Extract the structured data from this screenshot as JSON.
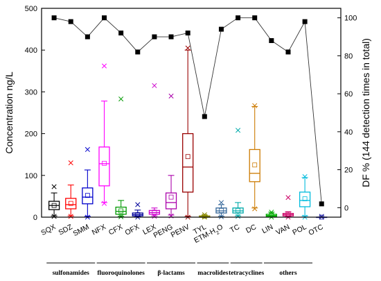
{
  "chart_data": {
    "type": "box",
    "ylabel_left": "Concentration ng/L",
    "ylabel_right": "DF % (144 detection times in total)",
    "ylim_left": [
      0,
      500
    ],
    "ylim_right": [
      -5,
      105
    ],
    "yticks_left": [
      0,
      100,
      200,
      300,
      400,
      500
    ],
    "yticks_right": [
      0,
      20,
      40,
      60,
      80,
      100
    ],
    "grid": false,
    "categories": [
      {
        "label": "SQX",
        "sub": "",
        "color": "#000000",
        "q1": 18,
        "median": 28,
        "q3": 38,
        "whisker_low": 3,
        "whisker_high": 58,
        "mean": 28,
        "min": 2,
        "max": 73
      },
      {
        "label": "SDZ",
        "sub": "",
        "color": "#ff0000",
        "q1": 20,
        "median": 30,
        "q3": 45,
        "whisker_low": 3,
        "whisker_high": 77,
        "mean": 33,
        "min": 2,
        "max": 130
      },
      {
        "label": "SMM",
        "sub": "",
        "color": "#0000cc",
        "q1": 32,
        "median": 48,
        "q3": 70,
        "whisker_low": 2,
        "whisker_high": 113,
        "mean": 52,
        "min": 0,
        "max": 162
      },
      {
        "label": "NFX",
        "sub": "",
        "color": "#ff00ff",
        "q1": 75,
        "median": 128,
        "q3": 168,
        "whisker_low": 35,
        "whisker_high": 278,
        "mean": 129,
        "min": 33,
        "max": 362
      },
      {
        "label": "CFX",
        "sub": "",
        "color": "#009900",
        "q1": 7,
        "median": 14,
        "q3": 24,
        "whisker_low": 2,
        "whisker_high": 40,
        "mean": 15,
        "min": 1,
        "max": 283
      },
      {
        "label": "OFX",
        "sub": "",
        "color": "#000099",
        "q1": 3,
        "median": 6,
        "q3": 10,
        "whisker_low": 1,
        "whisker_high": 17,
        "mean": 6,
        "min": 0,
        "max": 30
      },
      {
        "label": "LEX",
        "sub": "",
        "color": "#cc00cc",
        "q1": 7,
        "median": 11,
        "q3": 16,
        "whisker_low": 3,
        "whisker_high": 22,
        "mean": 12,
        "min": 2,
        "max": 315
      },
      {
        "label": "PENG",
        "sub": "",
        "color": "#aa00aa",
        "q1": 20,
        "median": 35,
        "q3": 58,
        "whisker_low": 5,
        "whisker_high": 100,
        "mean": 48,
        "min": 3,
        "max": 290
      },
      {
        "label": "PENV",
        "sub": "",
        "color": "#990000",
        "q1": 60,
        "median": 120,
        "q3": 200,
        "whisker_low": 2,
        "whisker_high": 400,
        "mean": 145,
        "min": 0,
        "max": 405
      },
      {
        "label": "TYL",
        "sub": "",
        "color": "#888800",
        "q1": 0,
        "median": 1,
        "q3": 3,
        "whisker_low": 0,
        "whisker_high": 5,
        "mean": 2,
        "min": 0,
        "max": 6
      },
      {
        "label": "ETM-H",
        "sub": "2",
        "label_tail": "O",
        "color": "#336699",
        "q1": 10,
        "median": 15,
        "q3": 22,
        "whisker_low": 2,
        "whisker_high": 30,
        "mean": 16,
        "min": 1,
        "max": 35
      },
      {
        "label": "TC",
        "sub": "",
        "color": "#00aaaa",
        "q1": 10,
        "median": 15,
        "q3": 22,
        "whisker_low": 3,
        "whisker_high": 35,
        "mean": 16,
        "min": 2,
        "max": 208
      },
      {
        "label": "DC",
        "sub": "",
        "color": "#cc7a00",
        "q1": 85,
        "median": 105,
        "q3": 162,
        "whisker_low": 22,
        "whisker_high": 265,
        "mean": 125,
        "min": 20,
        "max": 267
      },
      {
        "label": "LIN",
        "sub": "",
        "color": "#00aa00",
        "q1": 2,
        "median": 4,
        "q3": 7,
        "whisker_low": 0,
        "whisker_high": 12,
        "mean": 5,
        "min": 0,
        "max": 12
      },
      {
        "label": "VAN",
        "sub": "",
        "color": "#cc0066",
        "q1": 3,
        "median": 6,
        "q3": 9,
        "whisker_low": 1,
        "whisker_high": 13,
        "mean": 7,
        "min": 0,
        "max": 47
      },
      {
        "label": "POL",
        "sub": "",
        "color": "#00bbdd",
        "q1": 25,
        "median": 40,
        "q3": 60,
        "whisker_low": 3,
        "whisker_high": 95,
        "mean": 44,
        "min": 0,
        "max": 97
      },
      {
        "label": "OTC",
        "sub": "",
        "color": "#3333aa",
        "q1": 0,
        "median": 0,
        "q3": 0,
        "whisker_low": 0,
        "whisker_high": 0,
        "mean": 0,
        "min": 0,
        "max": 2
      }
    ],
    "df_series": {
      "marker": "square",
      "color": "#000000",
      "values": [
        100,
        98,
        90,
        100,
        92,
        82,
        90,
        90,
        92,
        48,
        94,
        100,
        100,
        88,
        82,
        98,
        2
      ]
    },
    "groups": [
      {
        "label": "sulfonamides",
        "from": 0,
        "to": 2
      },
      {
        "label": "fluoroquinolones",
        "from": 3,
        "to": 5
      },
      {
        "label": "β-lactams",
        "from": 6,
        "to": 8
      },
      {
        "label": "macrolides",
        "from": 9,
        "to": 10
      },
      {
        "label": "tetracyclines",
        "from": 11,
        "to": 12
      },
      {
        "label": "others",
        "from": 13,
        "to": 15
      }
    ]
  }
}
